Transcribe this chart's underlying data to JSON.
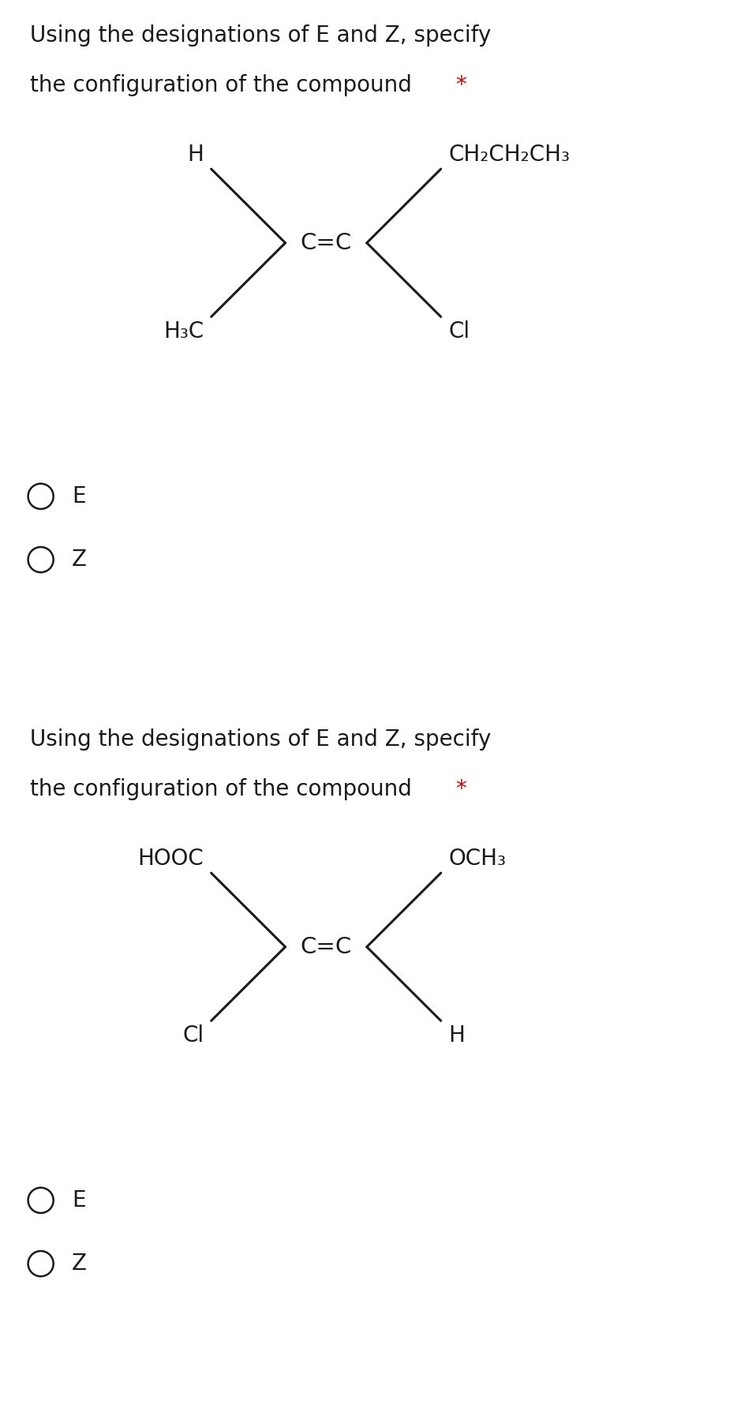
{
  "bg_color": "#ffffff",
  "divider_color": "#c8c8d0",
  "text_color": "#1a1a1a",
  "star_color": "#cc0000",
  "title_fontsize": 20,
  "label_fontsize": 20,
  "radio_fontsize": 20,
  "panel1": {
    "title_line1": "Using the designations of E and Z, specify",
    "title_line2": "the configuration of the compound ",
    "title_star": "*",
    "top_left_label": "H",
    "top_right_label": "CH₂CH₂CH₃",
    "bottom_left_label": "H₃C",
    "bottom_right_label": "Cl",
    "options": [
      "E",
      "Z"
    ]
  },
  "panel2": {
    "title_line1": "Using the designations of E and Z, specify",
    "title_line2": "the configuration of the compound ",
    "title_star": "*",
    "top_left_label": "HOOC",
    "top_right_label": "OCH₃",
    "bottom_left_label": "Cl",
    "bottom_right_label": "H",
    "options": [
      "E",
      "Z"
    ]
  }
}
